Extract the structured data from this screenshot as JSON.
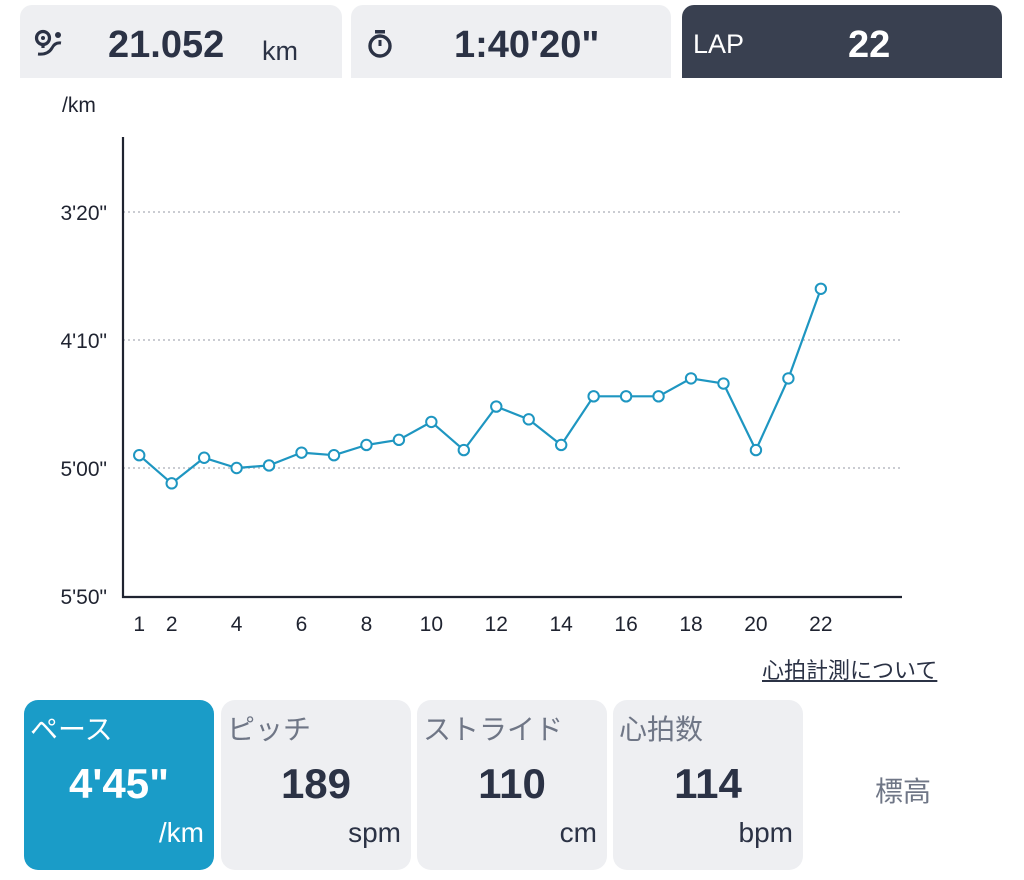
{
  "summary": {
    "distance": {
      "icon": "route-pin-icon",
      "value": "21.052",
      "unit": "km"
    },
    "time": {
      "icon": "stopwatch-icon",
      "value": "1:40'20\""
    },
    "lap": {
      "label": "LAP",
      "value": "22"
    }
  },
  "heart_rate_link": "心拍計測について",
  "metrics": {
    "pace": {
      "label": "ペース",
      "value": "4'45\"",
      "unit": "/km"
    },
    "pitch": {
      "label": "ピッチ",
      "value": "189",
      "unit": "spm"
    },
    "stride": {
      "label": "ストライド",
      "value": "110",
      "unit": "cm"
    },
    "heart_rate": {
      "label": "心拍数",
      "value": "114",
      "unit": "bpm"
    },
    "elevation": {
      "label": "標高"
    }
  },
  "colors": {
    "accent": "#1a9cc8",
    "line": "#1e96c1",
    "dark_tab": "#394050",
    "card_bg": "#eeeff2"
  },
  "chart_data": {
    "type": "line",
    "ylabel": "/km",
    "y_unit": "seconds per km",
    "y_inverted": true,
    "ylim": [
      200,
      350
    ],
    "yticks": [
      {
        "value": 200,
        "label": "3'20\""
      },
      {
        "value": 250,
        "label": "4'10\""
      },
      {
        "value": 300,
        "label": "5'00\""
      },
      {
        "value": 350,
        "label": "5'50\""
      }
    ],
    "xlim": [
      0.5,
      24.5
    ],
    "xticks": [
      1,
      2,
      4,
      6,
      8,
      10,
      12,
      14,
      16,
      18,
      20,
      22
    ],
    "grid": true,
    "series": [
      {
        "x": [
          1,
          2,
          3,
          4,
          5,
          6,
          7,
          8,
          9,
          10,
          11,
          12,
          13,
          14,
          15,
          16,
          17,
          18,
          19,
          20,
          21,
          22
        ],
        "y": [
          295,
          306,
          296,
          300,
          299,
          294,
          295,
          291,
          289,
          282,
          293,
          276,
          281,
          291,
          272,
          272,
          272,
          265,
          267,
          293,
          265,
          230
        ]
      }
    ]
  }
}
